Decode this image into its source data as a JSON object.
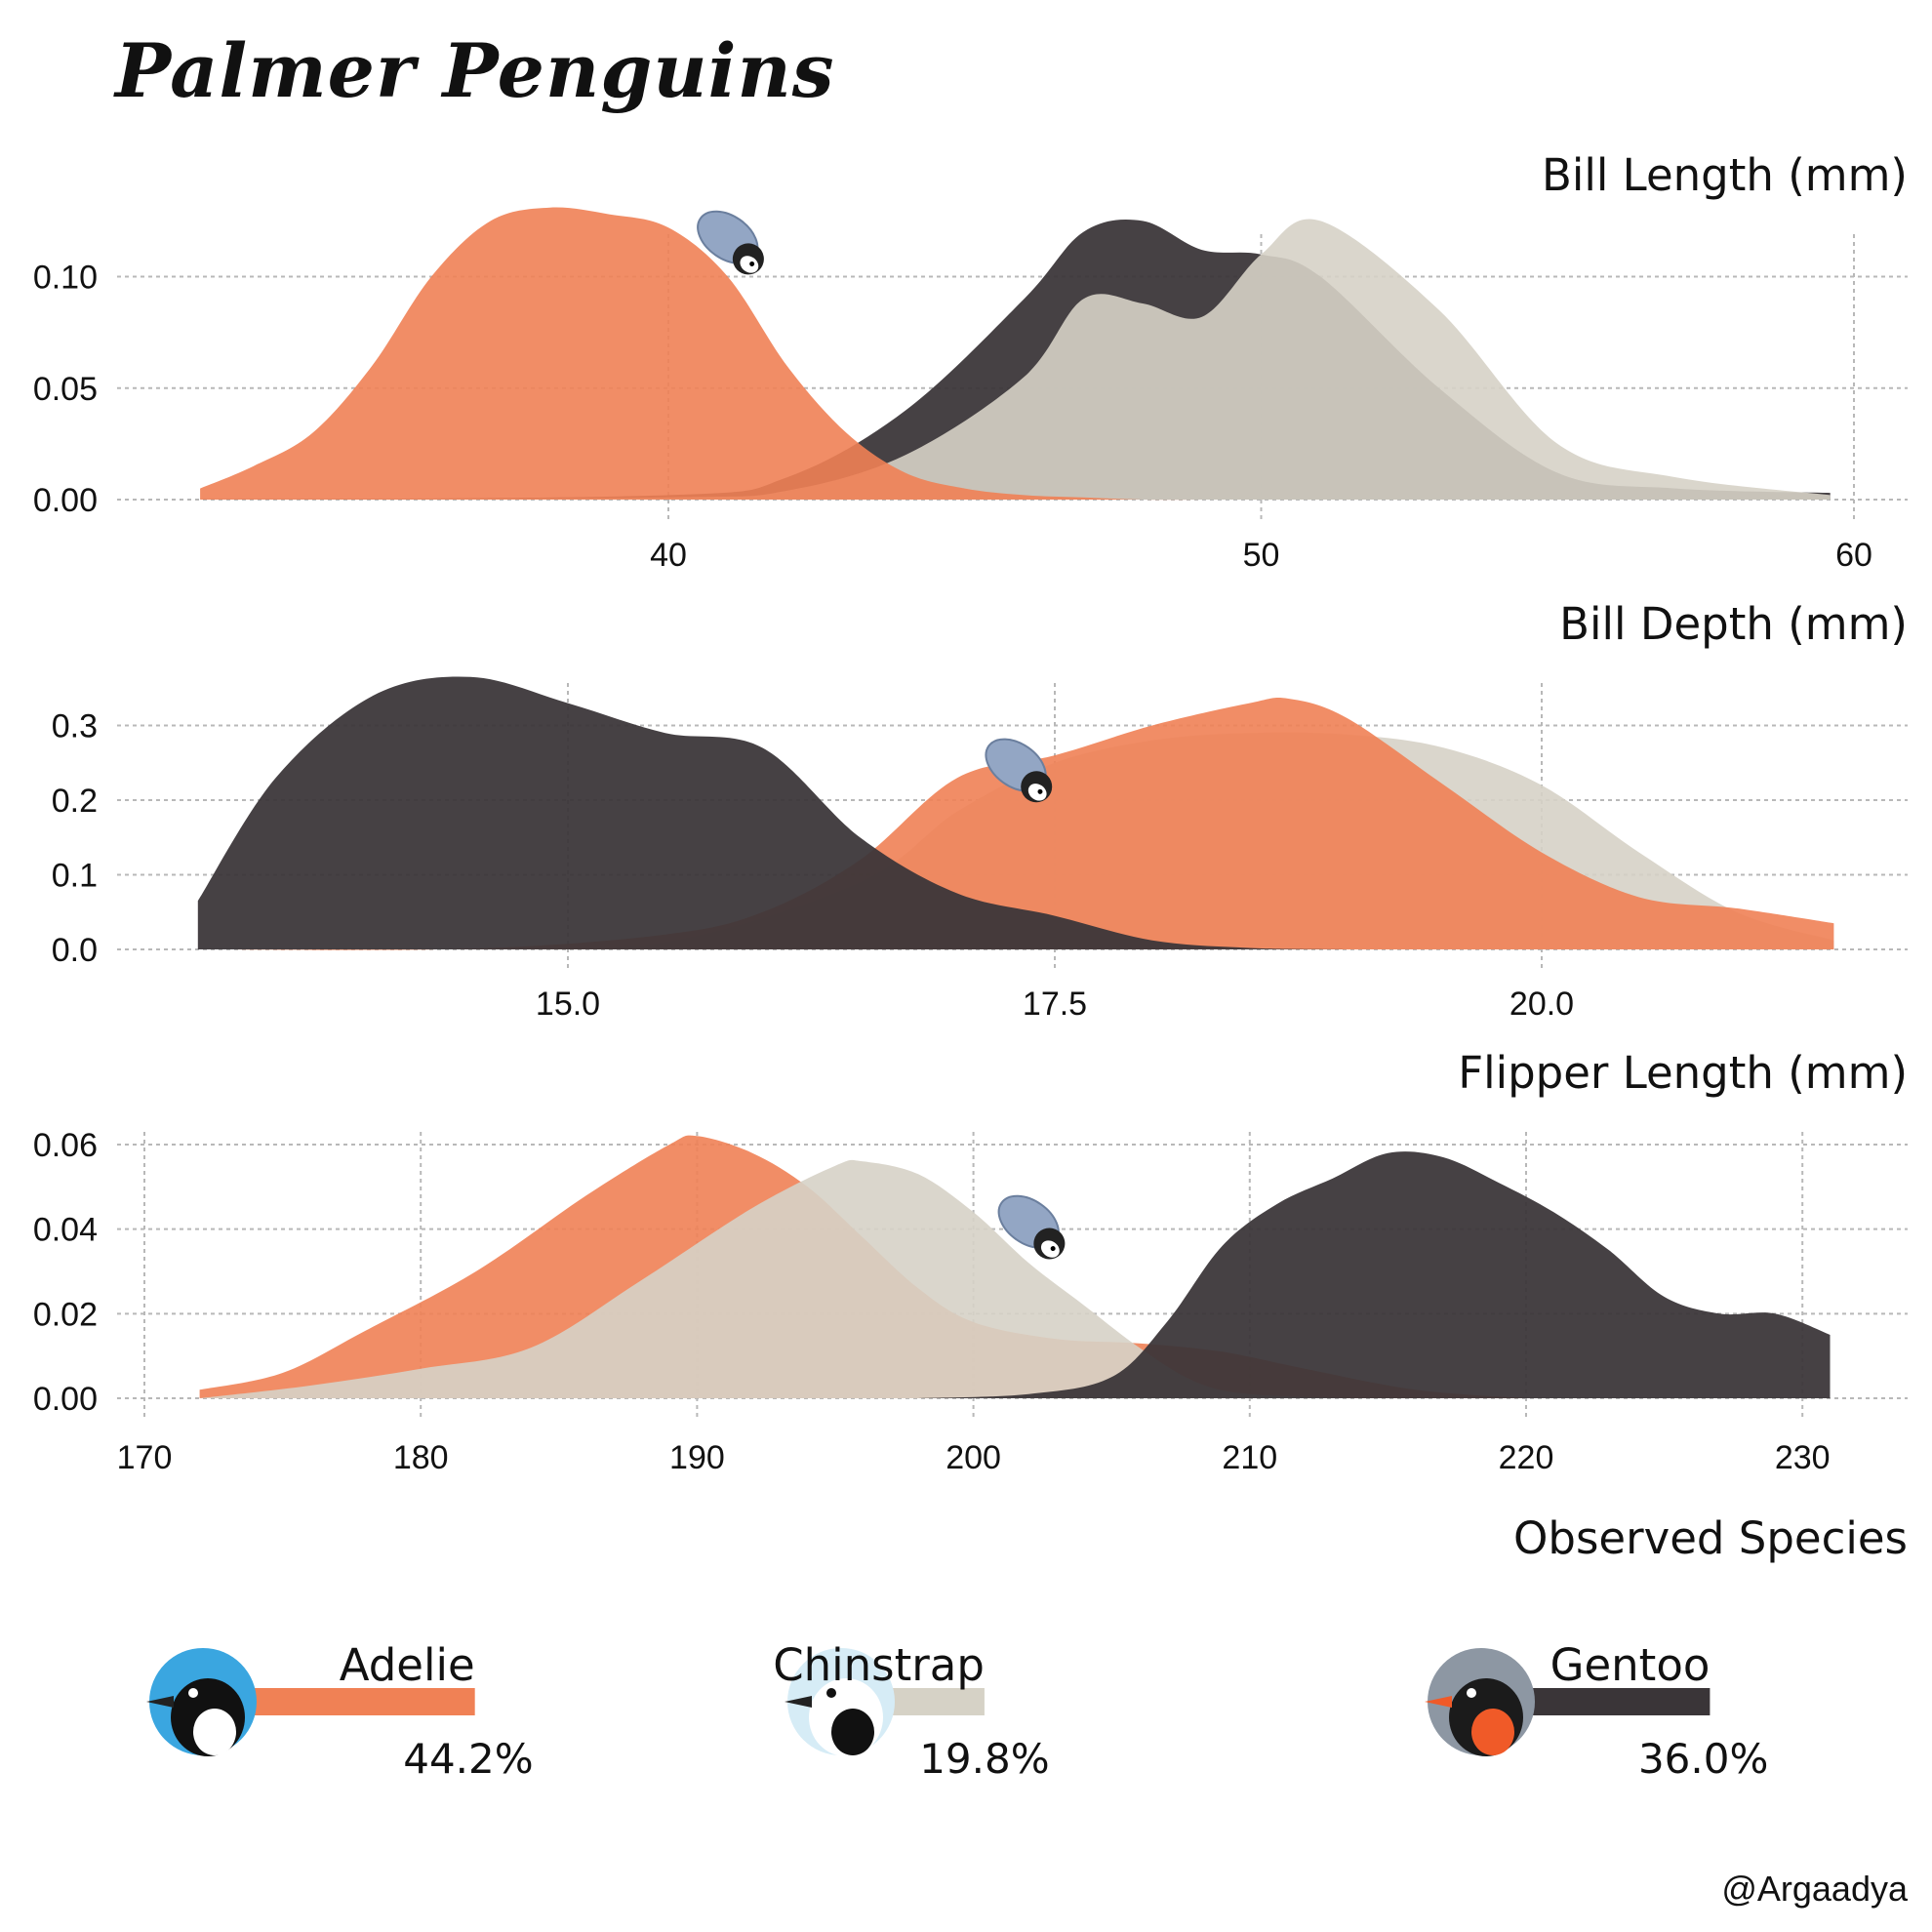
{
  "title": "Palmer Penguins",
  "credit": "@Argaadya",
  "colors": {
    "Adelie": "#f08155",
    "Chinstrap": "#d6d2c6",
    "Gentoo": "#3a3538"
  },
  "icons": {
    "slider": "penguin-chick-icon",
    "avatars": [
      "adelie-photo-icon",
      "chinstrap-photo-icon",
      "gentoo-photo-icon"
    ]
  },
  "chart_data": [
    {
      "type": "area",
      "title": "Bill Length (mm)",
      "xlim": [
        32,
        60
      ],
      "ylim": [
        0,
        0.13
      ],
      "xticks": [
        "40",
        "50",
        "60"
      ],
      "yticks": [
        "0.00",
        "0.05",
        "0.10"
      ],
      "marker_x": 41,
      "series": [
        {
          "name": "Gentoo",
          "x": [
            32.1,
            40,
            42,
            44,
            46,
            47,
            48,
            49,
            50,
            51,
            53,
            55,
            57,
            59.6
          ],
          "values": [
            0,
            0.002,
            0.01,
            0.04,
            0.09,
            0.12,
            0.125,
            0.112,
            0.11,
            0.1,
            0.05,
            0.012,
            0.005,
            0.003
          ]
        },
        {
          "name": "Chinstrap",
          "x": [
            32.1,
            40,
            42,
            44,
            46,
            47,
            48,
            49,
            50,
            51,
            53,
            55,
            57,
            59.6
          ],
          "values": [
            0,
            0.001,
            0.004,
            0.02,
            0.055,
            0.09,
            0.088,
            0.082,
            0.11,
            0.125,
            0.085,
            0.025,
            0.01,
            0.002
          ]
        },
        {
          "name": "Adelie",
          "x": [
            32.1,
            33,
            34,
            35,
            36,
            37,
            38,
            39,
            40,
            41,
            42,
            43,
            44,
            45,
            46,
            47,
            48,
            49,
            50
          ],
          "values": [
            0.005,
            0.015,
            0.03,
            0.06,
            0.1,
            0.125,
            0.131,
            0.128,
            0.122,
            0.1,
            0.06,
            0.03,
            0.012,
            0.005,
            0.002,
            0.001,
            0,
            0,
            0
          ]
        }
      ]
    },
    {
      "type": "area",
      "title": "Bill Depth (mm)",
      "xlim": [
        13.1,
        21.5
      ],
      "ylim": [
        0,
        0.37
      ],
      "xticks": [
        "15.0",
        "17.5",
        "20.0"
      ],
      "yticks": [
        "0.0",
        "0.1",
        "0.2",
        "0.3"
      ],
      "marker_x": 17.3,
      "series": [
        {
          "name": "Chinstrap",
          "x": [
            13.1,
            14.5,
            15.5,
            16.5,
            17.0,
            17.5,
            18.0,
            18.5,
            19.0,
            19.5,
            20.0,
            20.5,
            21.0,
            21.5
          ],
          "values": [
            0,
            0.001,
            0.01,
            0.09,
            0.185,
            0.25,
            0.28,
            0.29,
            0.288,
            0.27,
            0.22,
            0.13,
            0.05,
            0.012
          ]
        },
        {
          "name": "Adelie",
          "x": [
            13.1,
            14.5,
            15.5,
            16.0,
            16.5,
            17.0,
            17.5,
            18.0,
            18.5,
            18.7,
            19.0,
            19.5,
            20.0,
            20.5,
            21.0,
            21.5
          ],
          "values": [
            0,
            0.001,
            0.02,
            0.05,
            0.12,
            0.23,
            0.26,
            0.3,
            0.33,
            0.336,
            0.31,
            0.22,
            0.13,
            0.07,
            0.055,
            0.035
          ]
        },
        {
          "name": "Gentoo",
          "x": [
            13.1,
            13.5,
            14.0,
            14.5,
            15.0,
            15.5,
            16.0,
            16.5,
            17.0,
            17.5,
            18.0,
            18.5,
            19.0
          ],
          "values": [
            0.065,
            0.23,
            0.34,
            0.365,
            0.33,
            0.29,
            0.27,
            0.15,
            0.075,
            0.045,
            0.012,
            0.002,
            0
          ]
        }
      ]
    },
    {
      "type": "area",
      "title": "Flipper Length (mm)",
      "xlim": [
        170,
        231
      ],
      "ylim": [
        0,
        0.063
      ],
      "xticks": [
        "170",
        "180",
        "190",
        "200",
        "210",
        "220",
        "230"
      ],
      "yticks": [
        "0.00",
        "0.02",
        "0.04",
        "0.06"
      ],
      "marker_x": 202,
      "series": [
        {
          "name": "Adelie",
          "x": [
            172,
            175,
            178,
            182,
            186,
            189,
            190,
            192,
            194,
            196,
            198,
            200,
            203,
            206,
            209,
            212,
            216,
            220
          ],
          "values": [
            0.002,
            0.006,
            0.016,
            0.03,
            0.048,
            0.06,
            0.062,
            0.058,
            0.05,
            0.038,
            0.026,
            0.018,
            0.014,
            0.013,
            0.011,
            0.007,
            0.002,
            0
          ]
        },
        {
          "name": "Chinstrap",
          "x": [
            172,
            176,
            180,
            184,
            188,
            192,
            195,
            196,
            198,
            200,
            202,
            204,
            206,
            208,
            210,
            214
          ],
          "values": [
            0,
            0.003,
            0.007,
            0.012,
            0.028,
            0.045,
            0.055,
            0.056,
            0.053,
            0.044,
            0.032,
            0.022,
            0.012,
            0.004,
            0.001,
            0
          ]
        },
        {
          "name": "Gentoo",
          "x": [
            198,
            202,
            205,
            207,
            209,
            211,
            213,
            215,
            217,
            219,
            221,
            223,
            225,
            227,
            229,
            231
          ],
          "values": [
            0,
            0.001,
            0.005,
            0.018,
            0.036,
            0.046,
            0.052,
            0.058,
            0.057,
            0.051,
            0.044,
            0.035,
            0.024,
            0.02,
            0.02,
            0.015
          ]
        }
      ]
    }
  ],
  "species": {
    "title": "Observed Species",
    "items": [
      {
        "name": "Adelie",
        "percent_label": "44.2%",
        "fraction": 0.442
      },
      {
        "name": "Chinstrap",
        "percent_label": "19.8%",
        "fraction": 0.198
      },
      {
        "name": "Gentoo",
        "percent_label": "36.0%",
        "fraction": 0.36
      }
    ]
  }
}
